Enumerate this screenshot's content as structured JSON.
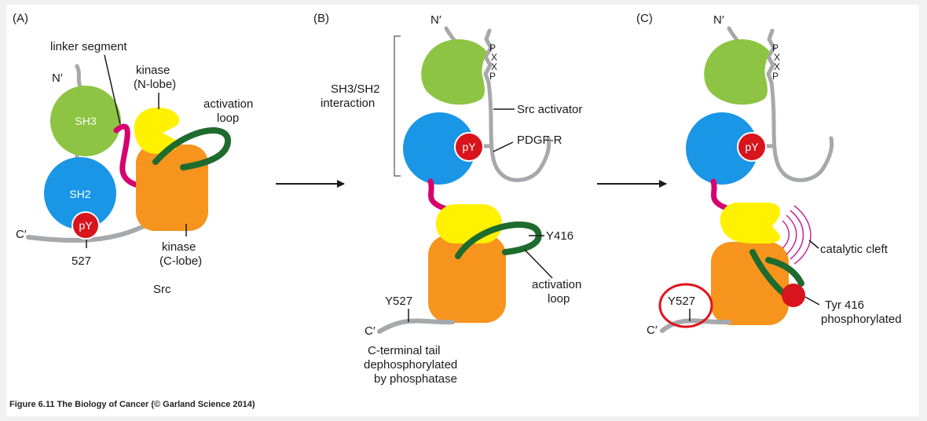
{
  "panels": {
    "a": {
      "letter": "(A)",
      "n_term": "N′",
      "c_term": "C′",
      "linker": "linker segment",
      "kinase_n_1": "kinase",
      "kinase_n_2": "(N-lobe)",
      "activation_1": "activation",
      "activation_2": "loop",
      "sh3": "SH3",
      "sh2": "SH2",
      "py": "pY",
      "kinase_c_1": "kinase",
      "kinase_c_2": "(C-lobe)",
      "residue": "527",
      "protein": "Src"
    },
    "b": {
      "letter": "(B)",
      "n_term": "N′",
      "interaction_1": "SH3/SH2",
      "interaction_2": "interaction",
      "motif": [
        "P",
        "X",
        "X",
        "P"
      ],
      "activator": "Src activator",
      "receptor": "PDGF-R",
      "py": "pY",
      "y416": "Y416",
      "activation_1": "activation",
      "activation_2": "loop",
      "y527": "Y527",
      "c_term": "C′",
      "tail_1": "C-terminal tail",
      "tail_2": "dephosphorylated",
      "tail_3": "by phosphatase"
    },
    "c": {
      "letter": "(C)",
      "n_term": "N′",
      "motif": [
        "P",
        "X",
        "X",
        "P"
      ],
      "py": "pY",
      "cleft": "catalytic cleft",
      "y527": "Y527",
      "c_term": "C′",
      "tyr_1": "Tyr 416",
      "tyr_2": "phosphorylated"
    }
  },
  "caption": "Figure 6.11 The Biology of Cancer (© Garland Science 2014)",
  "colors": {
    "sh3": "#8dc443",
    "sh2": "#1996e6",
    "py": "#d8141c",
    "kinase_n": "#fff100",
    "kinase_c": "#f7941d",
    "linker": "#d6006f",
    "activation_loop": "#1e6b2e",
    "chain": "#a6a8ab",
    "highlight_ring": "#e0141e"
  }
}
